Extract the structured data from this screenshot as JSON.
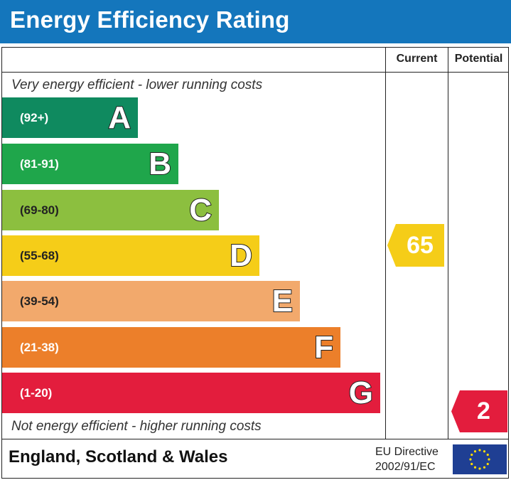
{
  "header": {
    "title": "Energy Efficiency Rating"
  },
  "columns": {
    "current": "Current",
    "potential": "Potential"
  },
  "captions": {
    "top": "Very energy efficient - lower running costs",
    "bottom": "Not energy efficient - higher running costs"
  },
  "chart_data": {
    "type": "bar",
    "title": "Energy Efficiency Rating",
    "bands": [
      {
        "letter": "A",
        "range": "(92+)",
        "color": "#0f8a5f"
      },
      {
        "letter": "B",
        "range": "(81-91)",
        "color": "#1fa64b"
      },
      {
        "letter": "C",
        "range": "(69-80)",
        "color": "#8cbf3f"
      },
      {
        "letter": "D",
        "range": "(55-68)",
        "color": "#f5cd18"
      },
      {
        "letter": "E",
        "range": "(39-54)",
        "color": "#f2a96c"
      },
      {
        "letter": "F",
        "range": "(21-38)",
        "color": "#ec7f2a"
      },
      {
        "letter": "G",
        "range": "(1-20)",
        "color": "#e31d3d"
      }
    ],
    "current": {
      "value": "65",
      "band": "D",
      "color": "#f5cd18"
    },
    "potential": {
      "value": "2",
      "band": "G",
      "color": "#e31d3d"
    }
  },
  "footer": {
    "region": "England, Scotland & Wales",
    "directive_line1": "EU Directive",
    "directive_line2": "2002/91/EC"
  }
}
